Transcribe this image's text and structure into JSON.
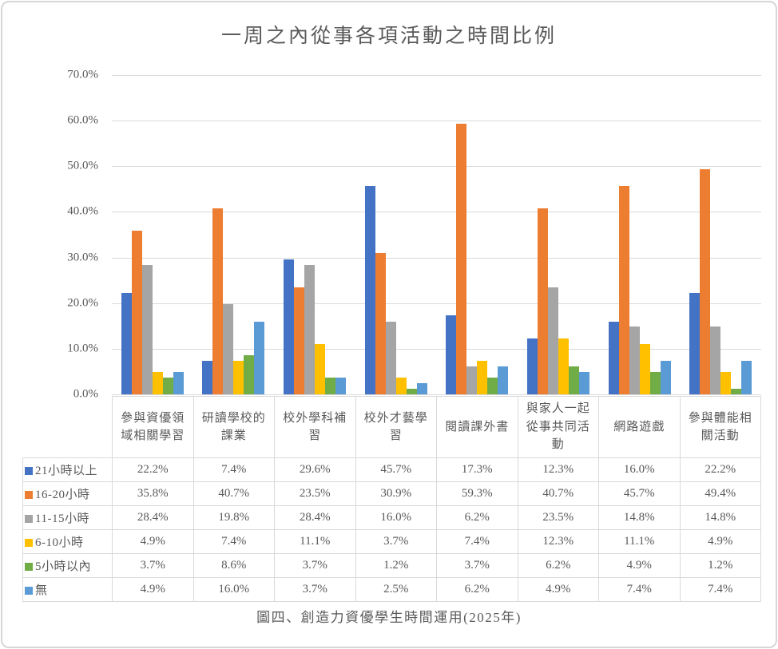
{
  "caption": "圖四、創造力資優學生時間運用(2025年)",
  "chart_data": {
    "type": "bar",
    "title": "一周之內從事各項活動之時間比例",
    "xlabel": "",
    "ylabel": "",
    "ylim": [
      0,
      70
    ],
    "ytick_step": 10,
    "ytick_labels": [
      "0.0%",
      "10.0%",
      "20.0%",
      "30.0%",
      "40.0%",
      "50.0%",
      "60.0%",
      "70.0%"
    ],
    "grid": true,
    "legend_position": "data-table-left-column",
    "value_format": "one-decimal-percent",
    "categories": [
      "參與資優領域相關學習",
      "研讀學校的課業",
      "校外學科補習",
      "校外才藝學習",
      "閱讀課外書",
      "與家人一起從事共同活動",
      "網路遊戲",
      "參與體能相關活動"
    ],
    "series": [
      {
        "name": "21小時以上",
        "color": "#4472C4",
        "values": [
          22.2,
          7.4,
          29.6,
          45.7,
          17.3,
          12.3,
          16.0,
          22.2
        ]
      },
      {
        "name": "16-20小時",
        "color": "#ED7D31",
        "values": [
          35.8,
          40.7,
          23.5,
          30.9,
          59.3,
          40.7,
          45.7,
          49.4
        ]
      },
      {
        "name": "11-15小時",
        "color": "#A5A5A5",
        "values": [
          28.4,
          19.8,
          28.4,
          16.0,
          6.2,
          23.5,
          14.8,
          14.8
        ]
      },
      {
        "name": "6-10小時",
        "color": "#FFC000",
        "values": [
          4.9,
          7.4,
          11.1,
          3.7,
          7.4,
          12.3,
          11.1,
          4.9
        ]
      },
      {
        "name": "5小時以內",
        "color": "#70AD47",
        "values": [
          3.7,
          8.6,
          3.7,
          1.2,
          3.7,
          6.2,
          4.9,
          1.2
        ]
      },
      {
        "name": "無",
        "color": "#5B9BD5",
        "values": [
          4.9,
          16.0,
          3.7,
          2.5,
          6.2,
          4.9,
          7.4,
          7.4
        ]
      }
    ]
  }
}
